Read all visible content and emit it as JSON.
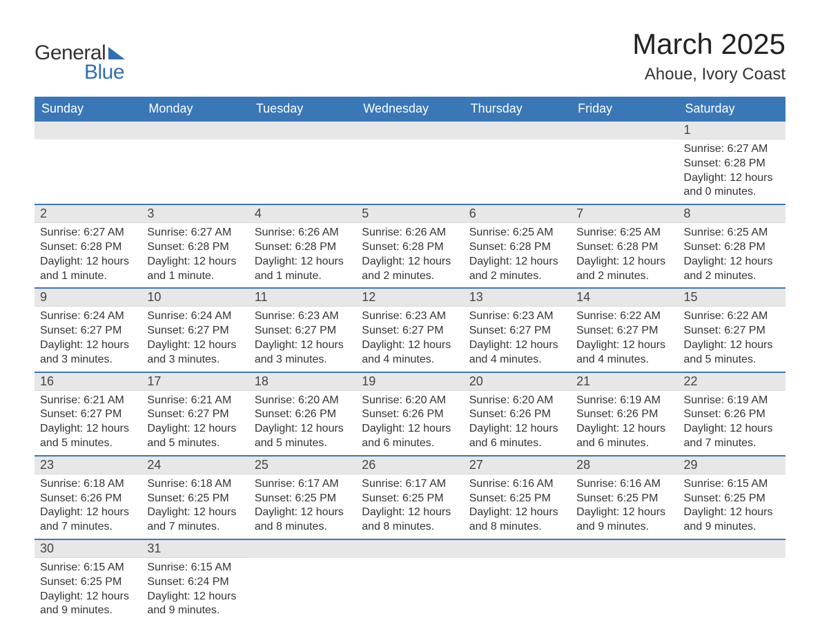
{
  "logo": {
    "text1": "General",
    "text2": "Blue",
    "brand_color": "#2f6eb5"
  },
  "title": "March 2025",
  "location": "Ahoue, Ivory Coast",
  "colors": {
    "header_bg": "#3a77b7",
    "header_text": "#ffffff",
    "daynum_bg": "#e7e7e7",
    "row_border": "#3a77b7",
    "body_text": "#333333"
  },
  "day_headers": [
    "Sunday",
    "Monday",
    "Tuesday",
    "Wednesday",
    "Thursday",
    "Friday",
    "Saturday"
  ],
  "weeks": [
    [
      null,
      null,
      null,
      null,
      null,
      null,
      {
        "n": "1",
        "sunrise": "Sunrise: 6:27 AM",
        "sunset": "Sunset: 6:28 PM",
        "daylight": "Daylight: 12 hours and 0 minutes."
      }
    ],
    [
      {
        "n": "2",
        "sunrise": "Sunrise: 6:27 AM",
        "sunset": "Sunset: 6:28 PM",
        "daylight": "Daylight: 12 hours and 1 minute."
      },
      {
        "n": "3",
        "sunrise": "Sunrise: 6:27 AM",
        "sunset": "Sunset: 6:28 PM",
        "daylight": "Daylight: 12 hours and 1 minute."
      },
      {
        "n": "4",
        "sunrise": "Sunrise: 6:26 AM",
        "sunset": "Sunset: 6:28 PM",
        "daylight": "Daylight: 12 hours and 1 minute."
      },
      {
        "n": "5",
        "sunrise": "Sunrise: 6:26 AM",
        "sunset": "Sunset: 6:28 PM",
        "daylight": "Daylight: 12 hours and 2 minutes."
      },
      {
        "n": "6",
        "sunrise": "Sunrise: 6:25 AM",
        "sunset": "Sunset: 6:28 PM",
        "daylight": "Daylight: 12 hours and 2 minutes."
      },
      {
        "n": "7",
        "sunrise": "Sunrise: 6:25 AM",
        "sunset": "Sunset: 6:28 PM",
        "daylight": "Daylight: 12 hours and 2 minutes."
      },
      {
        "n": "8",
        "sunrise": "Sunrise: 6:25 AM",
        "sunset": "Sunset: 6:28 PM",
        "daylight": "Daylight: 12 hours and 2 minutes."
      }
    ],
    [
      {
        "n": "9",
        "sunrise": "Sunrise: 6:24 AM",
        "sunset": "Sunset: 6:27 PM",
        "daylight": "Daylight: 12 hours and 3 minutes."
      },
      {
        "n": "10",
        "sunrise": "Sunrise: 6:24 AM",
        "sunset": "Sunset: 6:27 PM",
        "daylight": "Daylight: 12 hours and 3 minutes."
      },
      {
        "n": "11",
        "sunrise": "Sunrise: 6:23 AM",
        "sunset": "Sunset: 6:27 PM",
        "daylight": "Daylight: 12 hours and 3 minutes."
      },
      {
        "n": "12",
        "sunrise": "Sunrise: 6:23 AM",
        "sunset": "Sunset: 6:27 PM",
        "daylight": "Daylight: 12 hours and 4 minutes."
      },
      {
        "n": "13",
        "sunrise": "Sunrise: 6:23 AM",
        "sunset": "Sunset: 6:27 PM",
        "daylight": "Daylight: 12 hours and 4 minutes."
      },
      {
        "n": "14",
        "sunrise": "Sunrise: 6:22 AM",
        "sunset": "Sunset: 6:27 PM",
        "daylight": "Daylight: 12 hours and 4 minutes."
      },
      {
        "n": "15",
        "sunrise": "Sunrise: 6:22 AM",
        "sunset": "Sunset: 6:27 PM",
        "daylight": "Daylight: 12 hours and 5 minutes."
      }
    ],
    [
      {
        "n": "16",
        "sunrise": "Sunrise: 6:21 AM",
        "sunset": "Sunset: 6:27 PM",
        "daylight": "Daylight: 12 hours and 5 minutes."
      },
      {
        "n": "17",
        "sunrise": "Sunrise: 6:21 AM",
        "sunset": "Sunset: 6:27 PM",
        "daylight": "Daylight: 12 hours and 5 minutes."
      },
      {
        "n": "18",
        "sunrise": "Sunrise: 6:20 AM",
        "sunset": "Sunset: 6:26 PM",
        "daylight": "Daylight: 12 hours and 5 minutes."
      },
      {
        "n": "19",
        "sunrise": "Sunrise: 6:20 AM",
        "sunset": "Sunset: 6:26 PM",
        "daylight": "Daylight: 12 hours and 6 minutes."
      },
      {
        "n": "20",
        "sunrise": "Sunrise: 6:20 AM",
        "sunset": "Sunset: 6:26 PM",
        "daylight": "Daylight: 12 hours and 6 minutes."
      },
      {
        "n": "21",
        "sunrise": "Sunrise: 6:19 AM",
        "sunset": "Sunset: 6:26 PM",
        "daylight": "Daylight: 12 hours and 6 minutes."
      },
      {
        "n": "22",
        "sunrise": "Sunrise: 6:19 AM",
        "sunset": "Sunset: 6:26 PM",
        "daylight": "Daylight: 12 hours and 7 minutes."
      }
    ],
    [
      {
        "n": "23",
        "sunrise": "Sunrise: 6:18 AM",
        "sunset": "Sunset: 6:26 PM",
        "daylight": "Daylight: 12 hours and 7 minutes."
      },
      {
        "n": "24",
        "sunrise": "Sunrise: 6:18 AM",
        "sunset": "Sunset: 6:25 PM",
        "daylight": "Daylight: 12 hours and 7 minutes."
      },
      {
        "n": "25",
        "sunrise": "Sunrise: 6:17 AM",
        "sunset": "Sunset: 6:25 PM",
        "daylight": "Daylight: 12 hours and 8 minutes."
      },
      {
        "n": "26",
        "sunrise": "Sunrise: 6:17 AM",
        "sunset": "Sunset: 6:25 PM",
        "daylight": "Daylight: 12 hours and 8 minutes."
      },
      {
        "n": "27",
        "sunrise": "Sunrise: 6:16 AM",
        "sunset": "Sunset: 6:25 PM",
        "daylight": "Daylight: 12 hours and 8 minutes."
      },
      {
        "n": "28",
        "sunrise": "Sunrise: 6:16 AM",
        "sunset": "Sunset: 6:25 PM",
        "daylight": "Daylight: 12 hours and 9 minutes."
      },
      {
        "n": "29",
        "sunrise": "Sunrise: 6:15 AM",
        "sunset": "Sunset: 6:25 PM",
        "daylight": "Daylight: 12 hours and 9 minutes."
      }
    ],
    [
      {
        "n": "30",
        "sunrise": "Sunrise: 6:15 AM",
        "sunset": "Sunset: 6:25 PM",
        "daylight": "Daylight: 12 hours and 9 minutes."
      },
      {
        "n": "31",
        "sunrise": "Sunrise: 6:15 AM",
        "sunset": "Sunset: 6:24 PM",
        "daylight": "Daylight: 12 hours and 9 minutes."
      },
      null,
      null,
      null,
      null,
      null
    ]
  ]
}
